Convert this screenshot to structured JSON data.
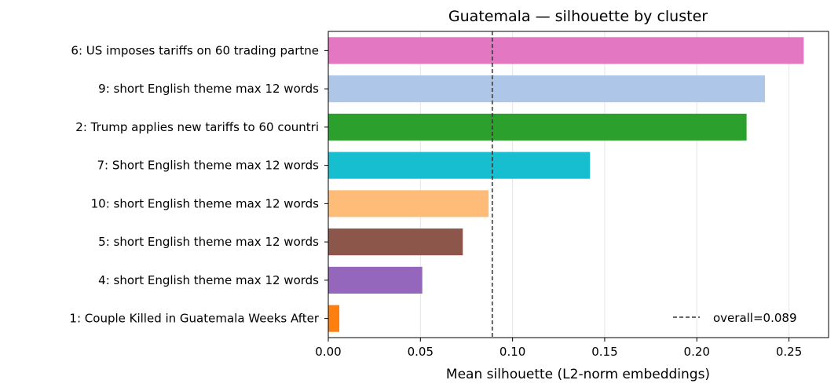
{
  "chart_data": {
    "type": "bar",
    "orientation": "horizontal",
    "title": "Guatemala — silhouette by cluster",
    "xlabel": "Mean silhouette (L2-norm embeddings)",
    "ylabel": "",
    "xlim": [
      0,
      0.2715
    ],
    "xticks": [
      0.0,
      0.05,
      0.1,
      0.15,
      0.2,
      0.25
    ],
    "xtick_labels": [
      "0.00",
      "0.05",
      "0.10",
      "0.15",
      "0.20",
      "0.25"
    ],
    "grid": "vertical",
    "categories": [
      "6: US imposes tariffs on 60 trading partne",
      "9: short English theme max 12 words",
      "2: Trump applies new tariffs to 60 countri",
      "7: Short English theme max 12 words",
      "10: short English theme max 12 words",
      "5: short English theme max 12 words",
      "4: short English theme max 12 words",
      "1: Couple Killed in Guatemala Weeks After "
    ],
    "values": [
      0.258,
      0.237,
      0.227,
      0.142,
      0.087,
      0.073,
      0.051,
      0.006
    ],
    "colors": [
      "#e377c2",
      "#aec7e8",
      "#2ca02c",
      "#17becf",
      "#ffbb78",
      "#8c564b",
      "#9467bd",
      "#ff7f0e"
    ],
    "reference_line": {
      "value": 0.089,
      "label": "overall=0.089",
      "style": "dashed",
      "color": "#333333"
    },
    "legend_position": "lower-right"
  }
}
